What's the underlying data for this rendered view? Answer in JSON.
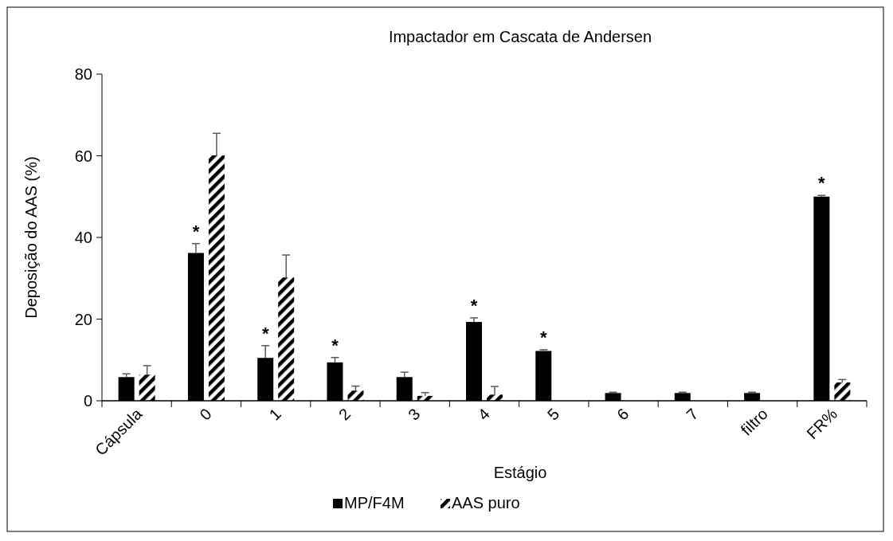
{
  "chart_data": {
    "type": "bar",
    "title": "Impactador em Cascata de Andersen",
    "xlabel": "Estágio",
    "ylabel": "Deposição do AAS (%)",
    "categories": [
      "Cápsula",
      "0",
      "1",
      "2",
      "3",
      "4",
      "5",
      "6",
      "7",
      "filtro",
      "FR%"
    ],
    "series": [
      {
        "name": "MP/F4M",
        "color": "#000000",
        "values": [
          5.8,
          36.2,
          10.5,
          9.4,
          5.8,
          19.3,
          12.2,
          1.9,
          1.9,
          1.9,
          50
        ],
        "errors": [
          [
            5.8,
            6.6
          ],
          [
            36.2,
            38.5
          ],
          [
            10.5,
            13.5
          ],
          [
            9.4,
            10.6
          ],
          [
            5.8,
            7.0
          ],
          [
            19.3,
            20.3
          ],
          [
            12.2,
            12.5
          ],
          [
            1.9,
            2.1
          ],
          [
            1.9,
            2.1
          ],
          [
            1.9,
            2.1
          ],
          [
            50,
            50.3
          ]
        ]
      },
      {
        "name": "AAS puro",
        "color": "#000000",
        "values": [
          6.4,
          60.1,
          30.2,
          2.5,
          1.2,
          1.5,
          0,
          0,
          0,
          0,
          4.5
        ],
        "errors": [
          [
            6.4,
            8.6
          ],
          [
            60.1,
            65.5
          ],
          [
            30.2,
            35.7
          ],
          [
            2.5,
            3.6
          ],
          [
            1.2,
            2.0
          ],
          [
            1.5,
            3.5
          ],
          null,
          null,
          null,
          null,
          [
            4.5,
            5.2
          ]
        ]
      }
    ],
    "ylim": [
      0,
      80
    ],
    "yticks": [
      0,
      20,
      40,
      60,
      80
    ],
    "legend": "bottom",
    "annotations": [
      {
        "text": "*",
        "x": "0",
        "y": 38.5
      },
      {
        "text": "*",
        "x": "1",
        "y": 13.5
      },
      {
        "text": "*",
        "x": "2",
        "y": 10.6
      },
      {
        "text": "*",
        "x": "4",
        "y": 20.3
      },
      {
        "text": "*",
        "x": "5",
        "y": 12.5
      },
      {
        "text": "*",
        "x": "FR%",
        "y": 50.3
      }
    ]
  }
}
